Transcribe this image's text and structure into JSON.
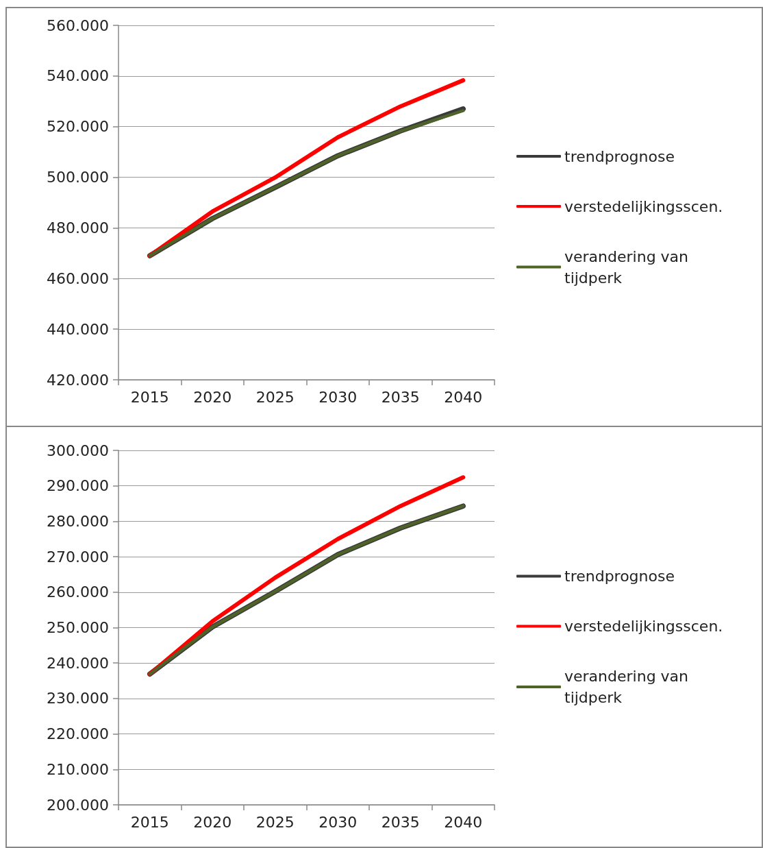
{
  "chart_data": [
    {
      "type": "line",
      "categories": [
        "2015",
        "2020",
        "2025",
        "2030",
        "2035",
        "2040"
      ],
      "series": [
        {
          "name": "trendprognose",
          "color": "#3a3a3a",
          "values": [
            469000,
            483700,
            496000,
            508500,
            518300,
            527000
          ]
        },
        {
          "name": "verstedelijkingsscen.",
          "color": "#ff0000",
          "values": [
            469000,
            486500,
            499900,
            515800,
            528000,
            538300
          ]
        },
        {
          "name": "verandering van tijdperk",
          "color": "#4f6228",
          "values": [
            469000,
            483700,
            496000,
            508500,
            518200,
            526300
          ]
        }
      ],
      "ylim": [
        420000,
        560000
      ],
      "yticks": [
        {
          "value": 420000,
          "label": "420.000"
        },
        {
          "value": 440000,
          "label": "440.000"
        },
        {
          "value": 460000,
          "label": "460.000"
        },
        {
          "value": 480000,
          "label": "480.000"
        },
        {
          "value": 500000,
          "label": "500.000"
        },
        {
          "value": 520000,
          "label": "520.000"
        },
        {
          "value": 540000,
          "label": "540.000"
        },
        {
          "value": 560000,
          "label": "560.000"
        }
      ],
      "grid": "y",
      "legend": "right",
      "marker": "none",
      "line_style": "solid"
    },
    {
      "type": "line",
      "categories": [
        "2015",
        "2020",
        "2025",
        "2030",
        "2035",
        "2040"
      ],
      "series": [
        {
          "name": "trendprognose",
          "color": "#3a3a3a",
          "values": [
            236900,
            250200,
            260200,
            270600,
            278100,
            284300
          ]
        },
        {
          "name": "verstedelijkingsscen.",
          "color": "#ff0000",
          "values": [
            236900,
            251800,
            264100,
            275000,
            284300,
            292400
          ]
        },
        {
          "name": "verandering van tijdperk",
          "color": "#4f6228",
          "values": [
            236900,
            250200,
            260200,
            270600,
            278100,
            284300
          ]
        }
      ],
      "ylim": [
        200000,
        300000
      ],
      "yticks": [
        {
          "value": 200000,
          "label": "200.000"
        },
        {
          "value": 210000,
          "label": "210.000"
        },
        {
          "value": 220000,
          "label": "220.000"
        },
        {
          "value": 230000,
          "label": "230.000"
        },
        {
          "value": 240000,
          "label": "240.000"
        },
        {
          "value": 250000,
          "label": "250.000"
        },
        {
          "value": 260000,
          "label": "260.000"
        },
        {
          "value": 270000,
          "label": "270.000"
        },
        {
          "value": 280000,
          "label": "280.000"
        },
        {
          "value": 290000,
          "label": "290.000"
        },
        {
          "value": 300000,
          "label": "300.000"
        }
      ],
      "grid": "y",
      "legend": "right",
      "marker": "none",
      "line_style": "solid"
    }
  ]
}
